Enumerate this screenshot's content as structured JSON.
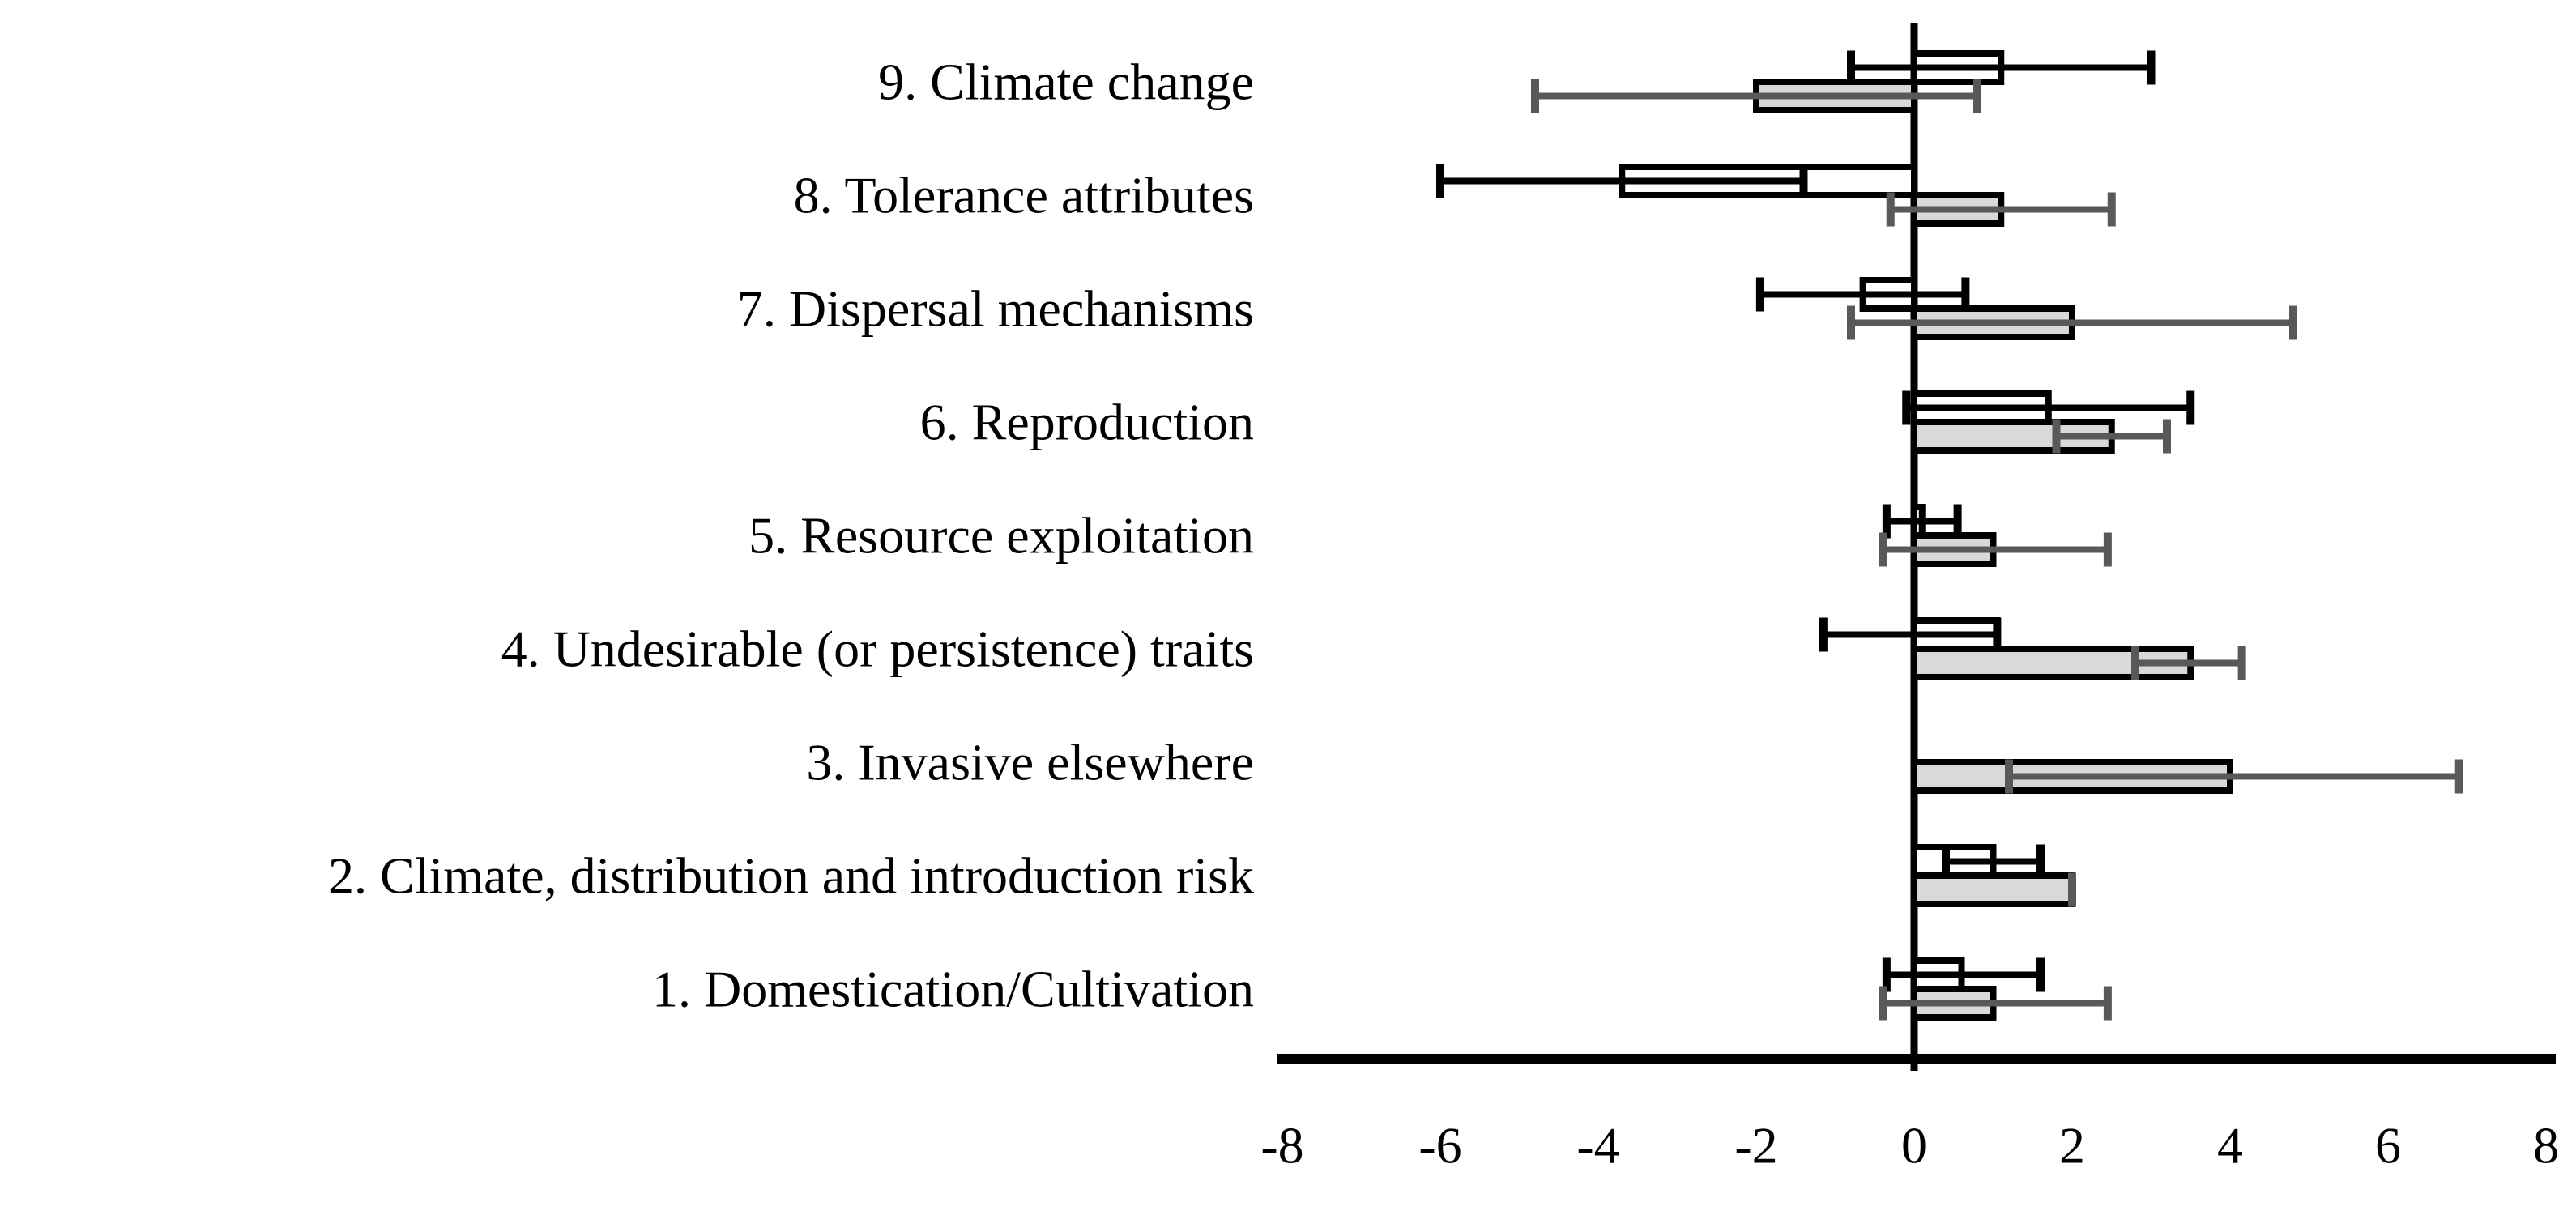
{
  "chart_data": {
    "type": "bar",
    "orientation": "horizontal",
    "title": "",
    "xlabel": "",
    "ylabel": "",
    "xlim": [
      -8,
      8
    ],
    "xticks": [
      -8,
      -6,
      -4,
      -2,
      0,
      2,
      4,
      6,
      8
    ],
    "tick_labels": [
      "-8",
      "-6",
      "-4",
      "-2",
      "0",
      "2",
      "4",
      "6",
      "8"
    ],
    "grid": false,
    "legend_position": "none",
    "categories": [
      "9. Climate change",
      "8. Tolerance attributes",
      "7. Dispersal mechanisms",
      "6. Reproduction",
      "5. Resource exploitation",
      "4. Undesirable (or persistence) traits",
      "3. Invasive elsewhere",
      "2. Climate, distribution and introduction risk",
      "1. Domestication/Cultivation"
    ],
    "series": [
      {
        "name": "white-outlined-bars",
        "bar_fill": "#ffffff",
        "bar_outline": "#000000",
        "error_color": "#000000",
        "values": [
          1.1,
          -3.7,
          -0.65,
          1.7,
          0.1,
          1.05,
          null,
          1.0,
          0.6
        ],
        "error_low": [
          -0.8,
          -6.0,
          -1.95,
          -0.1,
          -0.35,
          -1.15,
          null,
          0.4,
          -0.35
        ],
        "error_high": [
          3.0,
          -1.4,
          0.65,
          3.5,
          0.55,
          1.05,
          null,
          1.6,
          1.6
        ]
      },
      {
        "name": "light-gray-bars",
        "bar_fill": "#d9d9d9",
        "bar_outline": "#000000",
        "error_color": "#595959",
        "values": [
          -2.0,
          1.1,
          2.0,
          2.5,
          1.0,
          3.5,
          4.0,
          2.0,
          1.0
        ],
        "error_low": [
          -4.8,
          -0.3,
          -0.8,
          1.8,
          -0.4,
          2.8,
          1.2,
          2.0,
          -0.4
        ],
        "error_high": [
          0.8,
          2.5,
          4.8,
          3.2,
          2.45,
          4.15,
          6.9,
          2.0,
          2.45
        ]
      }
    ],
    "colors": {
      "axis": "#000000",
      "gray_bar_fill": "#d9d9d9",
      "gray_error": "#595959",
      "black": "#000000"
    }
  }
}
